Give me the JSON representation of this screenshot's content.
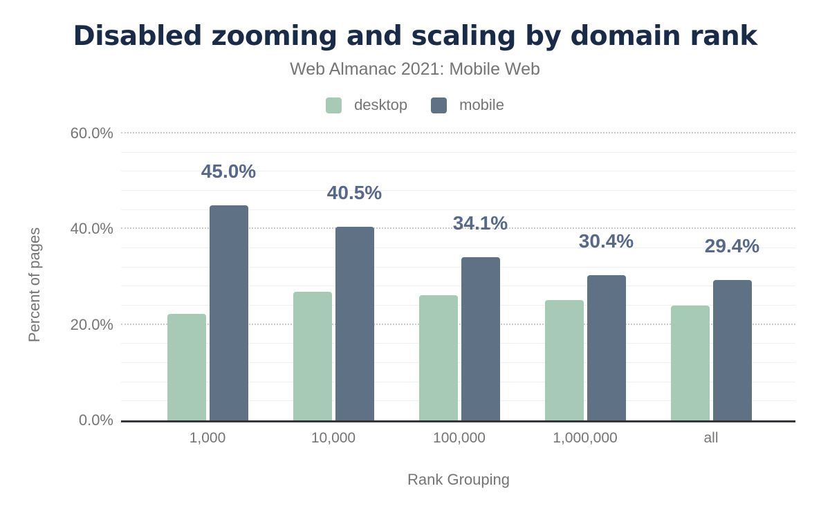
{
  "header": {
    "title": "Disabled zooming and scaling by domain rank",
    "subtitle": "Web Almanac 2021: Mobile Web"
  },
  "colors": {
    "title_text": "#1a2b49",
    "muted_text": "#757575",
    "desktop_series": "#a7cab6",
    "mobile_series": "#5f7185",
    "data_label": "#57688b",
    "axis_line": "#35363a",
    "major_gridline": "#cccccc",
    "minor_gridline": "#f0f0f2",
    "background": "#ffffff"
  },
  "chart_data": {
    "type": "bar",
    "title": "Disabled zooming and scaling by domain rank",
    "subtitle": "Web Almanac 2021: Mobile Web",
    "categories": [
      "1,000",
      "10,000",
      "100,000",
      "1,000,000",
      "all"
    ],
    "series": [
      {
        "name": "desktop",
        "color": "#a7cab6",
        "values": [
          22.3,
          26.9,
          26.1,
          25.2,
          24.0
        ]
      },
      {
        "name": "mobile",
        "color": "#5f7185",
        "values": [
          45.0,
          40.5,
          34.1,
          30.4,
          29.4
        ],
        "data_labels": [
          "45.0%",
          "40.5%",
          "34.1%",
          "30.4%",
          "29.4%"
        ]
      }
    ],
    "xlabel": "Rank Grouping",
    "ylabel": "Percent of pages",
    "ylim": [
      0,
      60
    ],
    "yticks": [
      "0.0%",
      "20.0%",
      "40.0%",
      "60.0%"
    ],
    "ytick_values": [
      0,
      20,
      40,
      60
    ],
    "major_grid_interval": 20,
    "minor_grid_interval": 4,
    "grid": true,
    "legend_position": "top",
    "annotated_series": "mobile"
  }
}
